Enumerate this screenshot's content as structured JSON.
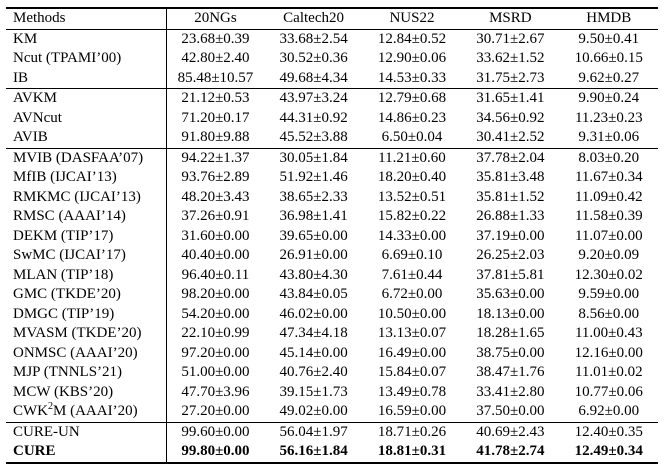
{
  "colors": {
    "text": "#000000",
    "background": "#ffffff",
    "rule": "#000000"
  },
  "table": {
    "columns": [
      "Methods",
      "20NGs",
      "Caltech20",
      "NUS22",
      "MSRD",
      "HMDB"
    ],
    "sections": [
      [
        {
          "method": "KM",
          "values": [
            "23.68±0.39",
            "33.68±2.54",
            "12.84±0.52",
            "30.71±2.67",
            "9.50±0.41"
          ]
        },
        {
          "method": "Ncut (TPAMI’00)",
          "values": [
            "42.80±2.40",
            "30.52±0.36",
            "12.90±0.06",
            "33.62±1.52",
            "10.66±0.15"
          ]
        },
        {
          "method": "IB",
          "values": [
            "85.48±10.57",
            "49.68±4.34",
            "14.53±0.33",
            "31.75±2.73",
            "9.62±0.27"
          ]
        }
      ],
      [
        {
          "method": "AVKM",
          "values": [
            "21.12±0.53",
            "43.97±3.24",
            "12.79±0.68",
            "31.65±1.41",
            "9.90±0.24"
          ]
        },
        {
          "method": "AVNcut",
          "values": [
            "71.20±0.17",
            "44.31±0.92",
            "14.86±0.23",
            "34.56±0.92",
            "11.23±0.23"
          ]
        },
        {
          "method": "AVIB",
          "values": [
            "91.80±9.88",
            "45.52±3.88",
            "6.50±0.04",
            "30.41±2.52",
            "9.31±0.06"
          ]
        }
      ],
      [
        {
          "method": "MVIB (DASFAA’07)",
          "values": [
            "94.22±1.37",
            "30.05±1.84",
            "11.21±0.60",
            "37.78±2.04",
            "8.03±0.20"
          ]
        },
        {
          "method": "MfIB (IJCAI’13)",
          "values": [
            "93.76±2.89",
            "51.92±1.46",
            "18.20±0.40",
            "35.81±3.48",
            "11.67±0.34"
          ]
        },
        {
          "method": "RMKMC (IJCAI’13)",
          "values": [
            "48.20±3.43",
            "38.65±2.33",
            "13.52±0.51",
            "35.81±1.52",
            "11.09±0.42"
          ]
        },
        {
          "method": "RMSC (AAAI’14)",
          "values": [
            "37.26±0.91",
            "36.98±1.41",
            "15.82±0.22",
            "26.88±1.33",
            "11.58±0.39"
          ]
        },
        {
          "method": "DEKM (TIP’17)",
          "values": [
            "31.60±0.00",
            "39.65±0.00",
            "14.33±0.00",
            "37.19±0.00",
            "11.07±0.00"
          ]
        },
        {
          "method": "SwMC (IJCAI’17)",
          "values": [
            "40.40±0.00",
            "26.91±0.00",
            "6.69±0.10",
            "26.25±2.03",
            "9.20±0.09"
          ]
        },
        {
          "method": "MLAN (TIP’18)",
          "values": [
            "96.40±0.11",
            "43.80±4.30",
            "7.61±0.44",
            "37.81±5.81",
            "12.30±0.02"
          ]
        },
        {
          "method": "GMC (TKDE’20)",
          "values": [
            "98.20±0.00",
            "43.84±0.05",
            "6.72±0.00",
            "35.63±0.00",
            "9.59±0.00"
          ]
        },
        {
          "method": "DMGC (TIP’19)",
          "values": [
            "54.20±0.00",
            "46.02±0.00",
            "10.50±0.00",
            "18.13±0.00",
            "8.56±0.00"
          ]
        },
        {
          "method": "MVASM (TKDE’20)",
          "values": [
            "22.10±0.99",
            "47.34±4.18",
            "13.13±0.07",
            "18.28±1.65",
            "11.00±0.43"
          ]
        },
        {
          "method": "ONMSC (AAAI’20)",
          "values": [
            "97.20±0.00",
            "45.14±0.00",
            "16.49±0.00",
            "38.75±0.00",
            "12.16±0.00"
          ]
        },
        {
          "method": "MJP (TNNLS’21)",
          "values": [
            "51.00±0.00",
            "40.76±2.40",
            "15.84±0.07",
            "38.47±1.76",
            "11.01±0.02"
          ]
        },
        {
          "method": "MCW (KBS’20)",
          "values": [
            "47.70±3.96",
            "39.15±1.73",
            "13.49±0.78",
            "33.41±2.80",
            "10.77±0.06"
          ]
        },
        {
          "method": "CWK^2M (AAAI’20)",
          "values": [
            "27.20±0.00",
            "49.02±0.00",
            "16.59±0.00",
            "37.50±0.00",
            "6.92±0.00"
          ]
        }
      ],
      [
        {
          "method": "CURE-UN",
          "values": [
            "99.60±0.00",
            "56.04±1.97",
            "18.71±0.26",
            "40.69±2.43",
            "12.40±0.35"
          ]
        },
        {
          "method": "CURE",
          "bold": true,
          "values": [
            "99.80±0.00",
            "56.16±1.84",
            "18.81±0.31",
            "41.78±2.74",
            "12.49±0.34"
          ]
        }
      ]
    ]
  }
}
